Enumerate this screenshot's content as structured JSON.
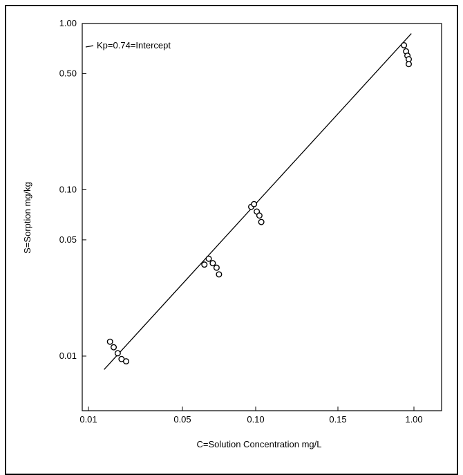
{
  "chart_data": {
    "type": "scatter",
    "title": "",
    "xlabel": "C=Solution Concentration mg/L",
    "ylabel": "S=Sorption mg/kg",
    "x_scale": "log",
    "y_scale": "log",
    "x_tick_labels": [
      "0.01",
      "0.05",
      "0.10",
      "0.15",
      "1.00"
    ],
    "y_tick_labels": [
      "1.00",
      "0.50",
      "0.10",
      "0.05",
      "0.01"
    ],
    "y_ticks": [
      1.0,
      0.5,
      0.1,
      0.05,
      0.01
    ],
    "ylim": [
      0.005,
      1.0
    ],
    "grid": false,
    "annotation": "Kp=0.74=Intercept",
    "points": [
      {
        "x": 0.0104,
        "y": 0.0122
      },
      {
        "x": 0.011,
        "y": 0.0113
      },
      {
        "x": 0.0117,
        "y": 0.0104
      },
      {
        "x": 0.0124,
        "y": 0.0096
      },
      {
        "x": 0.0133,
        "y": 0.0093
      },
      {
        "x": 0.044,
        "y": 0.0355
      },
      {
        "x": 0.047,
        "y": 0.0385
      },
      {
        "x": 0.05,
        "y": 0.0362
      },
      {
        "x": 0.053,
        "y": 0.034
      },
      {
        "x": 0.055,
        "y": 0.031
      },
      {
        "x": 0.09,
        "y": 0.079
      },
      {
        "x": 0.094,
        "y": 0.082
      },
      {
        "x": 0.098,
        "y": 0.074
      },
      {
        "x": 0.102,
        "y": 0.07
      },
      {
        "x": 0.105,
        "y": 0.064
      },
      {
        "x": 0.93,
        "y": 0.74
      },
      {
        "x": 0.96,
        "y": 0.68
      },
      {
        "x": 0.98,
        "y": 0.64
      },
      {
        "x": 1.0,
        "y": 0.61
      },
      {
        "x": 1.0,
        "y": 0.57
      }
    ],
    "fit_line": {
      "x": [
        0.0095,
        1.04
      ],
      "y": [
        0.0083,
        0.87
      ]
    }
  }
}
